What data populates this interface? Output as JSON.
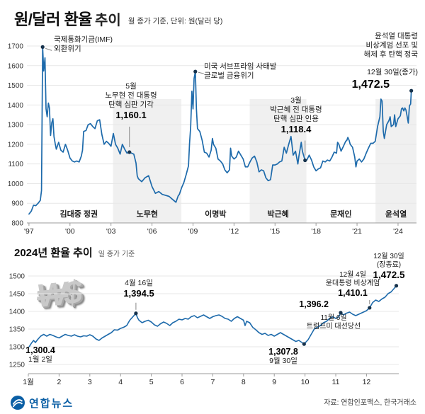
{
  "header": {
    "title_main": "원/달러 환율",
    "title_sub": "추이",
    "subtitle": "월 종가 기준, 단위: 원(달러 당)"
  },
  "colors": {
    "line": "#1d6aab",
    "band": "#f0f0f0",
    "grid": "#e7e7e7",
    "axis": "#9b9b9b",
    "dot": "#16324c",
    "brand_blue": "#0b5fa5"
  },
  "icon": {
    "won_dollar": "₩$"
  },
  "chart_data": [
    {
      "type": "line",
      "title": "원/달러 환율 추이",
      "basis": "월 종가 기준",
      "unit": "원(달러 당)",
      "xlim": [
        1996.85,
        2025.35
      ],
      "ylim": [
        800,
        1700
      ],
      "y_ticks": [
        800,
        900,
        1000,
        1100,
        1200,
        1300,
        1400,
        1500,
        1600,
        1700
      ],
      "x_tick_pos": [
        1997,
        2000,
        2003,
        2006,
        2009,
        2012,
        2015,
        2018,
        2021,
        2024
      ],
      "x_ticks": [
        "'97",
        "'00",
        "'03",
        "'06",
        "'09",
        "'12",
        "'15",
        "'18",
        "'21",
        "'24"
      ],
      "x": [
        1997.0,
        1997.17,
        1997.33,
        1997.5,
        1997.67,
        1997.83,
        1997.92,
        1998.0,
        1998.08,
        1998.17,
        1998.25,
        1998.33,
        1998.42,
        1998.5,
        1998.58,
        1998.67,
        1998.75,
        1998.83,
        1998.92,
        1999.0,
        1999.17,
        1999.33,
        1999.5,
        1999.67,
        1999.83,
        2000.0,
        2000.17,
        2000.33,
        2000.5,
        2000.67,
        2000.83,
        2000.92,
        2001.0,
        2001.17,
        2001.33,
        2001.5,
        2001.67,
        2001.83,
        2002.0,
        2002.17,
        2002.33,
        2002.5,
        2002.67,
        2002.83,
        2003.0,
        2003.17,
        2003.33,
        2003.5,
        2003.67,
        2003.83,
        2004.0,
        2004.17,
        2004.35,
        2004.5,
        2004.67,
        2004.83,
        2004.92,
        2005.0,
        2005.25,
        2005.5,
        2005.75,
        2006.0,
        2006.25,
        2006.5,
        2006.75,
        2007.0,
        2007.25,
        2007.5,
        2007.75,
        2007.92,
        2008.0,
        2008.17,
        2008.33,
        2008.5,
        2008.67,
        2008.75,
        2008.83,
        2008.92,
        2009.0,
        2009.08,
        2009.17,
        2009.25,
        2009.33,
        2009.5,
        2009.67,
        2009.83,
        2010.0,
        2010.17,
        2010.33,
        2010.42,
        2010.5,
        2010.67,
        2010.83,
        2011.0,
        2011.17,
        2011.33,
        2011.5,
        2011.67,
        2011.75,
        2011.83,
        2012.0,
        2012.17,
        2012.33,
        2012.5,
        2012.67,
        2012.83,
        2013.0,
        2013.17,
        2013.33,
        2013.5,
        2013.67,
        2013.83,
        2014.0,
        2014.17,
        2014.33,
        2014.5,
        2014.67,
        2014.83,
        2015.0,
        2015.17,
        2015.33,
        2015.5,
        2015.67,
        2015.75,
        2015.83,
        2016.0,
        2016.17,
        2016.33,
        2016.5,
        2016.67,
        2016.75,
        2016.92,
        2017.0,
        2017.2,
        2017.33,
        2017.5,
        2017.67,
        2017.83,
        2018.0,
        2018.17,
        2018.33,
        2018.5,
        2018.67,
        2018.83,
        2019.0,
        2019.17,
        2019.33,
        2019.5,
        2019.58,
        2019.67,
        2019.83,
        2020.0,
        2020.17,
        2020.25,
        2020.33,
        2020.42,
        2020.5,
        2020.67,
        2020.83,
        2020.92,
        2021.0,
        2021.17,
        2021.33,
        2021.5,
        2021.67,
        2021.83,
        2022.0,
        2022.17,
        2022.33,
        2022.42,
        2022.5,
        2022.67,
        2022.75,
        2022.83,
        2022.92,
        2023.0,
        2023.17,
        2023.33,
        2023.42,
        2023.5,
        2023.67,
        2023.75,
        2023.83,
        2024.0,
        2024.17,
        2024.25,
        2024.33,
        2024.42,
        2024.5,
        2024.58,
        2024.67,
        2024.75,
        2024.83,
        2024.92,
        2024.97
      ],
      "y": [
        845,
        860,
        890,
        888,
        900,
        915,
        965,
        1695,
        1573,
        1640,
        1380,
        1340,
        1410,
        1385,
        1245,
        1310,
        1330,
        1240,
        1204,
        1175,
        1210,
        1170,
        1160,
        1200,
        1170,
        1130,
        1115,
        1110,
        1115,
        1110,
        1140,
        1170,
        1265,
        1270,
        1300,
        1305,
        1290,
        1280,
        1320,
        1325,
        1250,
        1200,
        1215,
        1205,
        1190,
        1255,
        1200,
        1180,
        1150,
        1200,
        1175,
        1155,
        1160.1,
        1155,
        1150,
        1105,
        1040,
        1025,
        1010,
        1030,
        1040,
        985,
        950,
        960,
        945,
        940,
        935,
        920,
        905,
        938,
        945,
        980,
        1005,
        1045,
        1090,
        1205,
        1290,
        1470,
        1380,
        1535,
        1570,
        1380,
        1280,
        1265,
        1220,
        1160,
        1155,
        1135,
        1170,
        1230,
        1200,
        1180,
        1125,
        1115,
        1100,
        1070,
        1055,
        1070,
        1180,
        1140,
        1125,
        1135,
        1165,
        1145,
        1125,
        1085,
        1085,
        1110,
        1130,
        1140,
        1110,
        1060,
        1070,
        1065,
        1030,
        1015,
        1020,
        1095,
        1095,
        1100,
        1110,
        1115,
        1185,
        1170,
        1155,
        1200,
        1240,
        1145,
        1165,
        1100,
        1140,
        1210,
        1165,
        1118.4,
        1120,
        1145,
        1120,
        1085,
        1065,
        1075,
        1080,
        1115,
        1110,
        1120,
        1115,
        1135,
        1160,
        1155,
        1210,
        1200,
        1165,
        1190,
        1215,
        1220,
        1235,
        1220,
        1200,
        1185,
        1135,
        1085,
        1115,
        1125,
        1110,
        1125,
        1155,
        1180,
        1205,
        1205,
        1215,
        1255,
        1290,
        1340,
        1430,
        1420,
        1265,
        1230,
        1300,
        1320,
        1340,
        1290,
        1300,
        1350,
        1290,
        1330,
        1345,
        1380,
        1385,
        1370,
        1385,
        1375,
        1340,
        1307.8,
        1395,
        1405,
        1472.5
      ],
      "eras": [
        {
          "label": "김대중 정권",
          "start": 1998.15,
          "end": 2003.15,
          "shaded": false
        },
        {
          "label": "노무현",
          "start": 2003.15,
          "end": 2008.15,
          "shaded": true
        },
        {
          "label": "이명박",
          "start": 2008.15,
          "end": 2013.15,
          "shaded": false
        },
        {
          "label": "박근혜",
          "start": 2013.15,
          "end": 2017.3,
          "shaded": true
        },
        {
          "label": "문재인",
          "start": 2017.3,
          "end": 2022.35,
          "shaded": false
        },
        {
          "label": "윤석열",
          "start": 2022.35,
          "end": 2025.35,
          "shaded": true
        }
      ],
      "annotations": [
        {
          "id": "imf",
          "lines": [
            "국제통화기금(IMF)",
            "외환위기"
          ],
          "ax": 1998.0,
          "ay": 1695,
          "dot": true,
          "leader": [
            [
              4,
              2
            ],
            [
              13,
              5
            ]
          ]
        },
        {
          "id": "roh",
          "lines": [
            "5월",
            "노무현 전 대통령",
            "탄핵 심판 기각"
          ],
          "value": "1,160.1",
          "ax": 2004.35,
          "ay": 1160.1,
          "dot": true,
          "leader": [
            [
              0,
              -7
            ],
            [
              0,
              -36
            ]
          ]
        },
        {
          "id": "gfc",
          "lines": [
            "미국 서브프라임 사태발",
            "글로벌 금융위기"
          ],
          "ax": 2009.17,
          "ay": 1570,
          "dot": true,
          "leader": [
            [
              4,
              1
            ],
            [
              12,
              3
            ]
          ]
        },
        {
          "id": "park",
          "lines": [
            "3월",
            "박근혜 전 대통령",
            "탄핵 심판 인용"
          ],
          "value": "1,118.4",
          "ax": 2017.2,
          "ay": 1118.4,
          "dot": true,
          "leader": [
            [
              0,
              -7
            ],
            [
              0,
              -28
            ]
          ]
        },
        {
          "id": "yoon",
          "lines": [
            "윤석열 대통령",
            "비상계엄 선포 및",
            "해제 후 탄핵 정국"
          ],
          "date": "12월 30일(종가)",
          "value": "1,472.5",
          "ax": 2024.97,
          "ay": 1472.5,
          "dot": true
        }
      ]
    },
    {
      "type": "line",
      "title": "2024년 환율 추이",
      "basis": "일 종가 기준",
      "xlim": [
        1,
        13.05
      ],
      "ylim": [
        1250,
        1500
      ],
      "y_ticks": [
        1250,
        1300,
        1350,
        1400,
        1450,
        1500
      ],
      "x_tick_pos": [
        1,
        2,
        3,
        4,
        5,
        6,
        7,
        8,
        9,
        10,
        11,
        12
      ],
      "x_ticks": [
        "1월",
        "2",
        "3",
        "4",
        "5",
        "6",
        "7",
        "8",
        "9",
        "10",
        "11",
        "12"
      ],
      "x": [
        1.03,
        1.1,
        1.17,
        1.23,
        1.3,
        1.4,
        1.5,
        1.6,
        1.7,
        1.8,
        1.9,
        2.0,
        2.1,
        2.2,
        2.3,
        2.4,
        2.5,
        2.6,
        2.7,
        2.8,
        2.9,
        3.0,
        3.1,
        3.2,
        3.3,
        3.4,
        3.5,
        3.6,
        3.7,
        3.8,
        3.9,
        4.0,
        4.1,
        4.2,
        4.3,
        4.5,
        4.55,
        4.6,
        4.7,
        4.8,
        4.9,
        5.0,
        5.1,
        5.2,
        5.3,
        5.4,
        5.5,
        5.6,
        5.7,
        5.8,
        5.9,
        6.0,
        6.1,
        6.2,
        6.3,
        6.4,
        6.5,
        6.6,
        6.7,
        6.8,
        6.9,
        7.0,
        7.1,
        7.2,
        7.3,
        7.4,
        7.5,
        7.6,
        7.7,
        7.8,
        7.9,
        8.0,
        8.05,
        8.1,
        8.2,
        8.3,
        8.4,
        8.5,
        8.6,
        8.7,
        8.8,
        8.9,
        9.0,
        9.1,
        9.2,
        9.3,
        9.4,
        9.5,
        9.6,
        9.7,
        9.8,
        9.9,
        9.97,
        10.1,
        10.2,
        10.3,
        10.4,
        10.5,
        10.6,
        10.7,
        10.8,
        10.9,
        11.0,
        11.1,
        11.16,
        11.25,
        11.35,
        11.45,
        11.55,
        11.65,
        11.75,
        11.85,
        11.95,
        12.0,
        12.1,
        12.2,
        12.3,
        12.4,
        12.5,
        12.6,
        12.7,
        12.8,
        12.9,
        12.97
      ],
      "y": [
        1300.4,
        1310,
        1318,
        1312,
        1320,
        1330,
        1335,
        1330,
        1335,
        1332,
        1328,
        1325,
        1330,
        1335,
        1332,
        1330,
        1334,
        1330,
        1328,
        1331,
        1330,
        1334,
        1330,
        1322,
        1318,
        1325,
        1330,
        1335,
        1340,
        1348,
        1347,
        1352,
        1355,
        1360,
        1375,
        1394.5,
        1382,
        1375,
        1368,
        1372,
        1375,
        1370,
        1362,
        1358,
        1365,
        1370,
        1366,
        1360,
        1368,
        1372,
        1378,
        1376,
        1380,
        1378,
        1385,
        1388,
        1382,
        1386,
        1390,
        1385,
        1380,
        1385,
        1388,
        1390,
        1386,
        1380,
        1378,
        1372,
        1380,
        1385,
        1380,
        1375,
        1360,
        1372,
        1368,
        1355,
        1348,
        1340,
        1335,
        1338,
        1332,
        1335,
        1330,
        1335,
        1340,
        1335,
        1330,
        1325,
        1320,
        1315,
        1318,
        1312,
        1307.8,
        1320,
        1335,
        1350,
        1355,
        1360,
        1368,
        1372,
        1380,
        1385,
        1380,
        1385,
        1396.2,
        1390,
        1395,
        1398,
        1392,
        1388,
        1392,
        1396,
        1400,
        1402,
        1410.1,
        1425,
        1432,
        1428,
        1435,
        1440,
        1450,
        1455,
        1465,
        1472.5
      ],
      "annotations": [
        {
          "id": "jan",
          "value": "1,300.4",
          "date": "1월 2일",
          "ax": 1.03,
          "ay": 1300.4,
          "dot": false
        },
        {
          "id": "apr",
          "date": "4월 16일",
          "value": "1,394.5",
          "ax": 4.5,
          "ay": 1394.5,
          "dot": true,
          "leader": [
            [
              0,
              -5
            ],
            [
              0,
              -15
            ]
          ]
        },
        {
          "id": "sep",
          "value": "1,307.8",
          "date": "9월 30일",
          "ax": 9.97,
          "ay": 1307.8,
          "dot": true
        },
        {
          "id": "nov",
          "value": "1,396.2",
          "ax": 11.16,
          "ay": 1396.2,
          "dot": true
        },
        {
          "id": "trump",
          "lines": [
            "11월 6일",
            "트럼프미 대선당선"
          ]
        },
        {
          "id": "dec4",
          "lines": [
            "12월 4일",
            "윤대통령 비상계엄"
          ],
          "value": "1,410.1",
          "ax": 12.1,
          "ay": 1410.1,
          "dot": true,
          "leader": [
            [
              0,
              -5
            ],
            [
              0,
              -11
            ]
          ]
        },
        {
          "id": "dec30",
          "lines": [
            "12월 30일",
            "(장종료)"
          ],
          "value": "1,472.5",
          "ax": 12.97,
          "ay": 1472.5,
          "dot": true
        }
      ]
    }
  ],
  "footer": {
    "logo_text": "연합뉴스",
    "source": "자료: 연합인포맥스, 한국거래소"
  }
}
